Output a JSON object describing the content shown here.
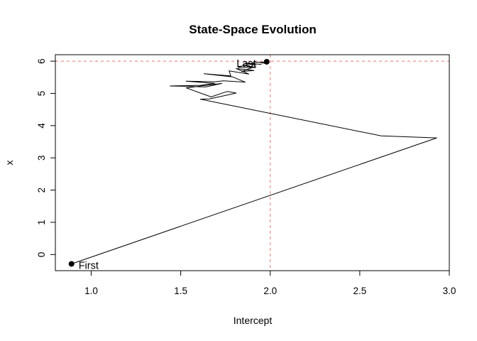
{
  "chart_data": {
    "type": "line",
    "title": "State-Space Evolution",
    "xlabel": "Intercept",
    "ylabel": "x",
    "xlim": [
      0.8,
      3.0
    ],
    "ylim": [
      -0.5,
      6.2
    ],
    "xticks": [
      "1.0",
      "1.5",
      "2.0",
      "2.5",
      "3.0"
    ],
    "yticks": [
      "0",
      "1",
      "2",
      "3",
      "4",
      "5",
      "6"
    ],
    "grid": false,
    "reference_lines": {
      "vertical_x": 2.0,
      "horizontal_y": 6.0,
      "color": "#e8776f",
      "style": "dashed"
    },
    "path_color": "#000000",
    "series": [
      {
        "x": [
          0.89,
          2.93,
          2.62,
          1.61,
          1.66,
          1.81,
          1.76,
          1.67,
          1.53,
          1.73,
          1.64,
          1.44,
          1.61,
          1.69,
          1.53,
          1.69,
          1.74,
          1.86,
          1.79,
          1.63,
          1.78,
          1.77,
          1.88,
          1.81,
          1.91,
          1.84,
          1.9,
          1.85,
          1.92,
          1.82,
          1.88,
          1.92,
          1.86,
          1.95,
          1.89,
          1.93,
          1.97,
          1.94,
          1.98
        ],
        "y": [
          -0.29,
          3.62,
          3.68,
          4.82,
          4.83,
          5.01,
          5.06,
          4.89,
          5.17,
          5.31,
          5.2,
          5.23,
          5.25,
          5.31,
          5.38,
          5.36,
          5.39,
          5.35,
          5.51,
          5.61,
          5.54,
          5.7,
          5.6,
          5.77,
          5.71,
          5.68,
          5.8,
          5.89,
          5.8,
          5.81,
          5.91,
          5.88,
          5.94,
          5.9,
          5.93,
          5.97,
          5.93,
          5.96,
          5.98
        ]
      }
    ],
    "annotations": [
      {
        "text": "First",
        "x": 0.89,
        "y": -0.29
      },
      {
        "text": "Last",
        "x": 1.98,
        "y": 5.98
      }
    ]
  }
}
